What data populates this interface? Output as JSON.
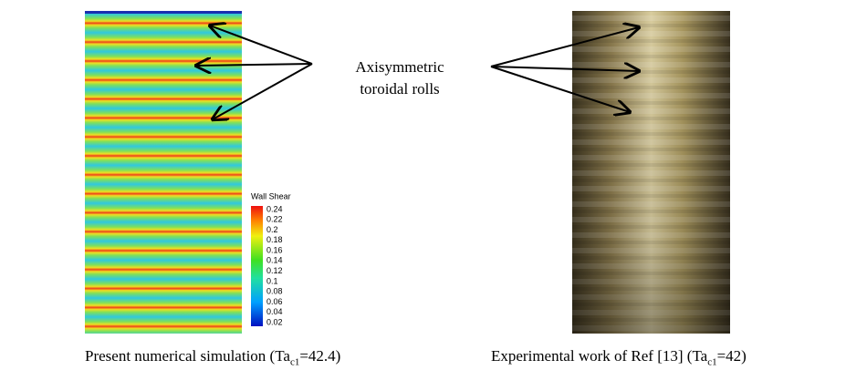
{
  "figure": {
    "annotation": [
      "Axisymmetric",
      "toroidal rolls"
    ],
    "colorbar": {
      "title": "Wall Shear",
      "labels": [
        "0.24",
        "0.22",
        "0.2",
        "0.18",
        "0.16",
        "0.14",
        "0.12",
        "0.1",
        "0.08",
        "0.06",
        "0.04",
        "0.02"
      ]
    },
    "captions": [
      {
        "text": "Present numerical simulation  (Ta",
        "sub": "c1",
        "tail": "=42.4)"
      },
      {
        "text": "Experimental work of Ref [13] (Ta",
        "sub": "c1",
        "tail": "=42)"
      }
    ]
  }
}
